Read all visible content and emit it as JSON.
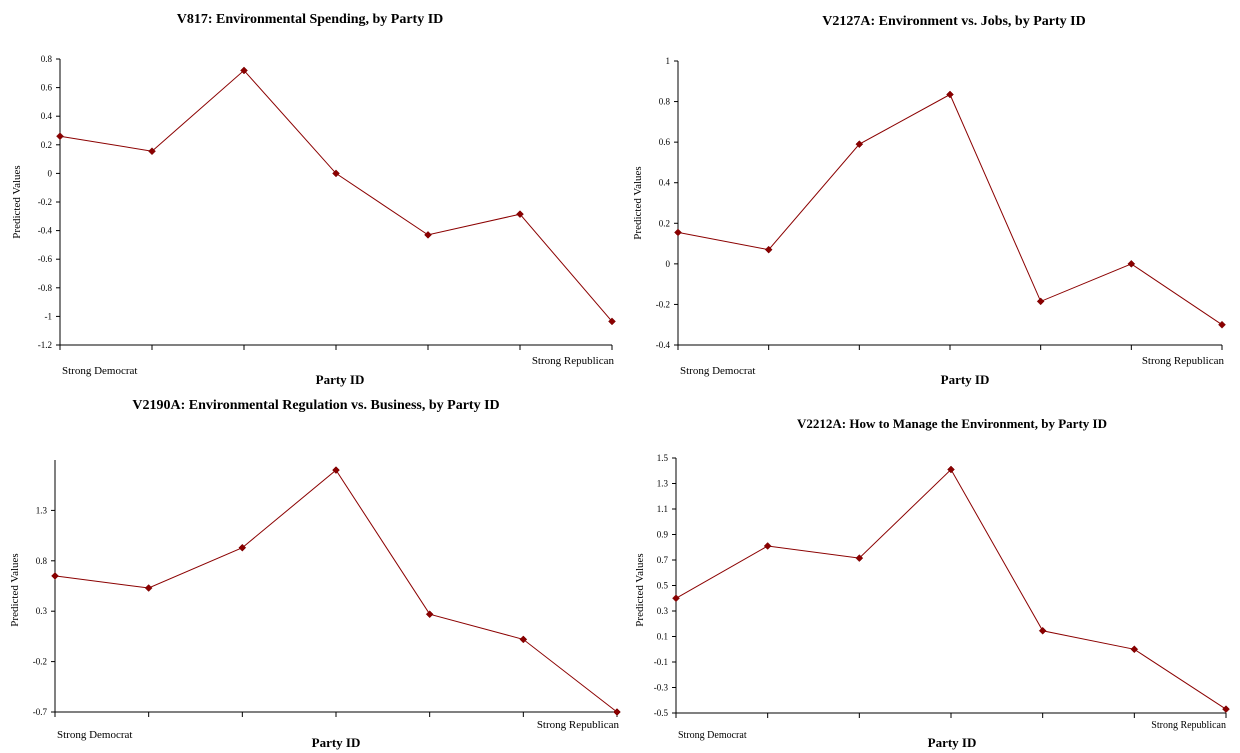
{
  "colors": {
    "series": "#8b0000",
    "axis": "#000000"
  },
  "chart_data": [
    {
      "type": "line",
      "title": "V817:  Environmental Spending, by Party ID",
      "xlabel": "Party ID",
      "ylabel": "Predicted Values",
      "ylim": [
        -1.2,
        0.8
      ],
      "yticks": [
        -1.2,
        -1,
        -0.8,
        -0.6,
        -0.4,
        -0.2,
        0,
        0.2,
        0.4,
        0.6,
        0.8
      ],
      "ytick_labels": [
        "-1.2",
        "-1",
        "-0.8",
        "-0.6",
        "-0.4",
        "-0.2",
        "0",
        "0.2",
        "0.4",
        "0.6",
        "0.8"
      ],
      "category_labels": [
        "Strong Democrat",
        "",
        "",
        "",
        "",
        "",
        "Strong Republican"
      ],
      "values": [
        0.26,
        0.155,
        0.72,
        0.0,
        -0.43,
        -0.285,
        -1.035
      ],
      "grid": false
    },
    {
      "type": "line",
      "title": "V2127A:  Environment vs. Jobs, by Party ID",
      "xlabel": "Party ID",
      "ylabel": "Predicted Values",
      "ylim": [
        -0.4,
        1
      ],
      "yticks": [
        -0.4,
        -0.2,
        0,
        0.2,
        0.4,
        0.6,
        0.8,
        1
      ],
      "ytick_labels": [
        "-0.4",
        "-0.2",
        "0",
        "0.2",
        "0.4",
        "0.6",
        "0.8",
        "1"
      ],
      "category_labels": [
        "Strong Democrat",
        "",
        "",
        "",
        "",
        "",
        "Strong Republican"
      ],
      "values": [
        0.155,
        0.07,
        0.59,
        0.835,
        -0.185,
        0.0,
        -0.3
      ],
      "grid": false
    },
    {
      "type": "line",
      "title": "V2190A: Environmental Regulation vs. Business, by Party ID",
      "xlabel": "Party ID",
      "ylabel": "Predicted Values",
      "ylim": [
        -0.7,
        1.8
      ],
      "yticks": [
        -0.7,
        -0.2,
        0.3,
        0.8,
        1.3
      ],
      "ytick_labels": [
        "-0.7",
        "-0.2",
        "0.3",
        "0.8",
        "1.3"
      ],
      "category_labels": [
        "Strong Democrat",
        "",
        "",
        "",
        "",
        "",
        "Strong Republican"
      ],
      "values": [
        0.65,
        0.53,
        0.93,
        1.7,
        0.27,
        0.02,
        -0.7
      ],
      "grid": false
    },
    {
      "type": "line",
      "title": "V2212A:  How to Manage the Environment, by Party ID",
      "xlabel": "Party ID",
      "ylabel": "Predicted Values",
      "ylim": [
        -0.5,
        1.5
      ],
      "yticks": [
        -0.5,
        -0.3,
        -0.1,
        0.1,
        0.3,
        0.5,
        0.7,
        0.9,
        1.1,
        1.3,
        1.5
      ],
      "ytick_labels": [
        "-0.5",
        "-0.3",
        "-0.1",
        "0.1",
        "0.3",
        "0.5",
        "0.7",
        "0.9",
        "1.1",
        "1.3",
        "1.5"
      ],
      "category_labels": [
        "Strong Democrat",
        "",
        "",
        "",
        "",
        "",
        "Strong Republican"
      ],
      "values": [
        0.4,
        0.81,
        0.715,
        1.41,
        0.145,
        0.0,
        -0.47
      ],
      "grid": false
    }
  ]
}
